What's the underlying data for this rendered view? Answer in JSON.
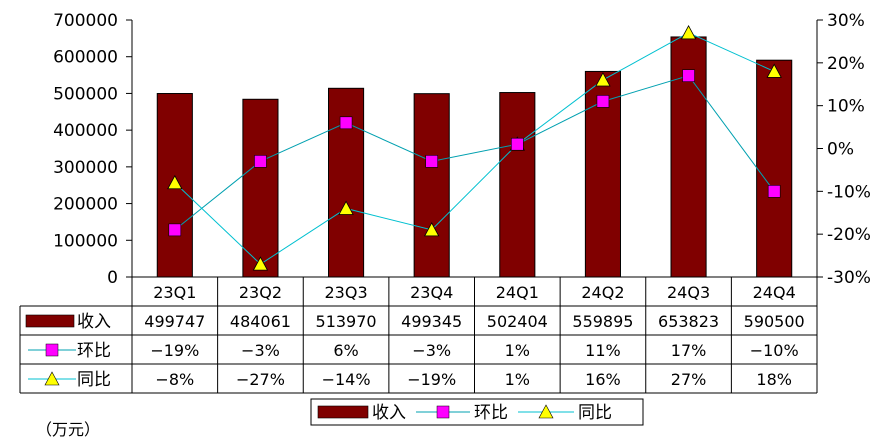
{
  "chart_data": {
    "type": "bar",
    "categories": [
      "23Q1",
      "23Q2",
      "23Q3",
      "23Q4",
      "24Q1",
      "24Q2",
      "24Q3",
      "24Q4"
    ],
    "series": [
      {
        "name": "收入",
        "kind": "bar",
        "axis": "left",
        "color": "#800000",
        "values": [
          499747,
          484061,
          513970,
          499345,
          502404,
          559895,
          653823,
          590500
        ]
      },
      {
        "name": "环比",
        "kind": "line",
        "axis": "right",
        "color": "#00a0b0",
        "marker": "square",
        "marker_color": "#ff00ff",
        "values": [
          -19,
          -3,
          6,
          -3,
          1,
          11,
          17,
          -10
        ]
      },
      {
        "name": "同比",
        "kind": "line",
        "axis": "right",
        "color": "#00c0d0",
        "marker": "triangle",
        "marker_color": "#ffff00",
        "values": [
          -8,
          -27,
          -14,
          -19,
          1,
          16,
          27,
          18
        ]
      }
    ],
    "left_axis": {
      "ylim": [
        0,
        700000
      ],
      "ticks": [
        "0",
        "100000",
        "200000",
        "300000",
        "400000",
        "500000",
        "600000",
        "700000"
      ]
    },
    "right_axis": {
      "ylim": [
        -30,
        30
      ],
      "ticks": [
        "-30%",
        "-20%",
        "-10%",
        "0%",
        "10%",
        "20%",
        "30%"
      ]
    },
    "table": {
      "rows": [
        {
          "label": "收入",
          "cells": [
            "499747",
            "484061",
            "513970",
            "499345",
            "502404",
            "559895",
            "653823",
            "590500"
          ]
        },
        {
          "label": "环比",
          "cells": [
            "−19%",
            "−3%",
            "6%",
            "−3%",
            "1%",
            "11%",
            "17%",
            "−10%"
          ]
        },
        {
          "label": "同比",
          "cells": [
            "−8%",
            "−27%",
            "−14%",
            "−19%",
            "1%",
            "16%",
            "27%",
            "18%"
          ]
        }
      ]
    },
    "legend": {
      "position": "bottom",
      "items": [
        "收入",
        "环比",
        "同比"
      ]
    },
    "unit_note": "（万元）",
    "grid": false
  }
}
